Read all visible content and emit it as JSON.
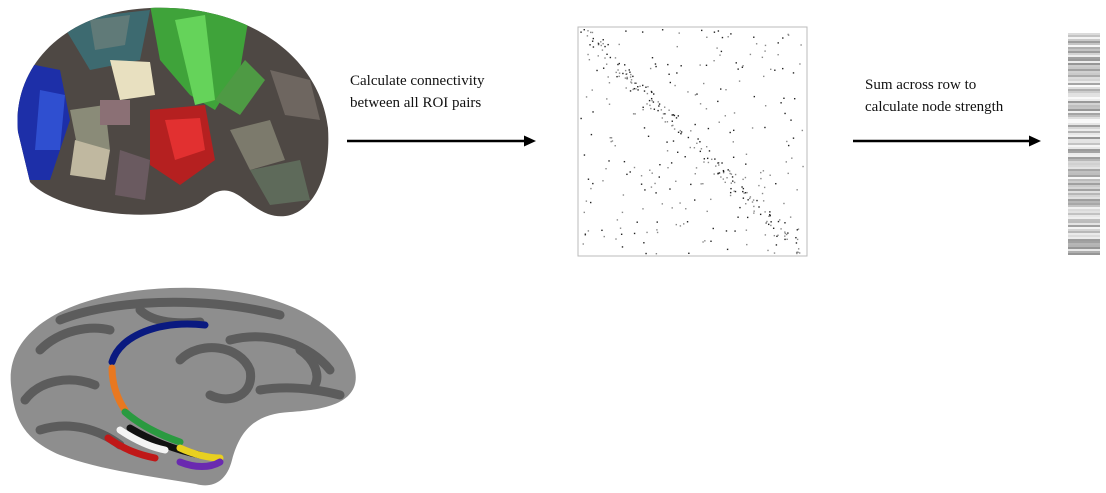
{
  "steps": [
    {
      "lines": [
        "Calculate connectivity",
        "between all ROI pairs"
      ]
    },
    {
      "lines": [
        "Sum across row to",
        "calculate node strength"
      ]
    }
  ]
}
